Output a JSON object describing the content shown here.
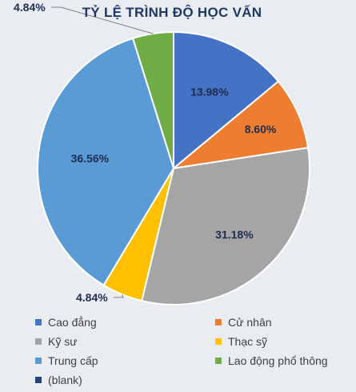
{
  "chart_data": {
    "type": "pie",
    "title": "TỶ LỆ TRÌNH ĐỘ HỌC VẤN",
    "legend_position": "bottom",
    "slices": [
      {
        "name": "Cao đẳng",
        "value": 13.98,
        "label": "13.98%",
        "color": "#4472c4"
      },
      {
        "name": "Cử nhân",
        "value": 8.6,
        "label": "8.60%",
        "color": "#ed7d31"
      },
      {
        "name": "Kỹ sư",
        "value": 31.18,
        "label": "31.18%",
        "color": "#a5a5a5"
      },
      {
        "name": "Thạc sỹ",
        "value": 4.84,
        "label": "4.84%",
        "color": "#ffc000"
      },
      {
        "name": "Trung cấp",
        "value": 36.56,
        "label": "36.56%",
        "color": "#5b9bd5"
      },
      {
        "name": "Lao động phổ thông",
        "value": 4.84,
        "label": "4.84%",
        "color": "#70ad47"
      },
      {
        "name": "(blank)",
        "value": 0,
        "label": "",
        "color": "#264478"
      }
    ]
  }
}
